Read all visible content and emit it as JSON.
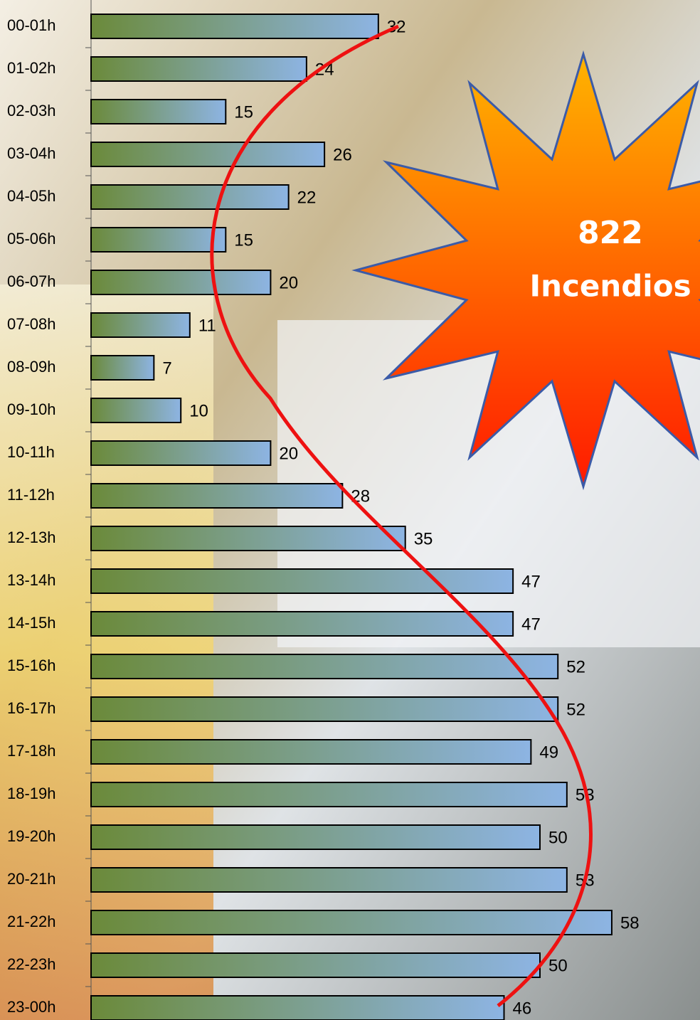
{
  "chart_data": {
    "type": "bar",
    "orientation": "horizontal",
    "categories": [
      "00-01h",
      "01-02h",
      "02-03h",
      "03-04h",
      "04-05h",
      "05-06h",
      "06-07h",
      "07-08h",
      "08-09h",
      "09-10h",
      "10-11h",
      "11-12h",
      "12-13h",
      "13-14h",
      "14-15h",
      "15-16h",
      "16-17h",
      "17-18h",
      "18-19h",
      "19-20h",
      "20-21h",
      "21-22h",
      "22-23h",
      "23-00h"
    ],
    "values": [
      32,
      24,
      15,
      26,
      22,
      15,
      20,
      11,
      7,
      10,
      20,
      28,
      35,
      47,
      47,
      52,
      52,
      49,
      53,
      50,
      53,
      58,
      50,
      46
    ],
    "color_start": "#6b8a3a",
    "color_end": "#8db4e3",
    "annotation": {
      "number": "822",
      "text": "Incendios"
    }
  }
}
